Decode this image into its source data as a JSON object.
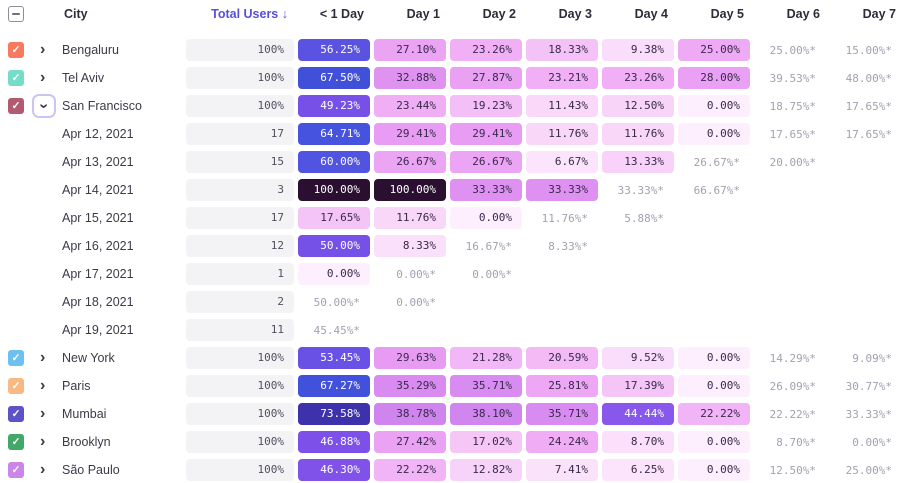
{
  "header": {
    "columns": [
      "City",
      "Total Users",
      "< 1 Day",
      "Day 1",
      "Day 2",
      "Day 3",
      "Day 4",
      "Day 5",
      "Day 6",
      "Day 7"
    ],
    "select_all_state": "indeterminate",
    "sorted_column": "Total Users",
    "sort_direction": "desc"
  },
  "icons": {
    "check": "✓",
    "chevron": "›",
    "minus": "−",
    "sort_desc": "↓"
  },
  "colors": {
    "header_text": "#302b3b",
    "sorted_header": "#5750d9",
    "label_text": "#3e3949",
    "incomplete_text": "#a49fb0",
    "total_pill_bg": "#f3f3f6",
    "total_pill_text": "#534e5e",
    "heat_text_dark": "#372a4a",
    "heat_text_light": "#ffffff",
    "focus_ring": "#cfc3f6",
    "checkbox_border": "#8d8d97"
  },
  "heat_text_threshold": 42,
  "heat_scale": [
    [
      0,
      "#feeffe"
    ],
    [
      6,
      "#fce6fc"
    ],
    [
      12,
      "#f9d6f9"
    ],
    [
      18,
      "#f5c3f7"
    ],
    [
      24,
      "#f0adf5"
    ],
    [
      30,
      "#e79af3"
    ],
    [
      35,
      "#da8cf0"
    ],
    [
      40,
      "#cc82ee"
    ],
    [
      43,
      "#8c5cec"
    ],
    [
      47,
      "#7d50e9"
    ],
    [
      52,
      "#6f51e6"
    ],
    [
      56,
      "#5b52e0"
    ],
    [
      61,
      "#4d55e0"
    ],
    [
      67,
      "#4152dc"
    ],
    [
      70,
      "#3c45cc"
    ],
    [
      74,
      "#3d2fa8"
    ],
    [
      85,
      "#331b63"
    ],
    [
      100,
      "#2a0f31"
    ]
  ],
  "rows": [
    {
      "type": "city",
      "label": "Bengaluru",
      "checkbox_color": "#f8795d",
      "expanded": false,
      "total": "100%",
      "cells": [
        {
          "s": "p",
          "v": 56.25,
          "d": "56.25%"
        },
        {
          "s": "p",
          "v": 27.1,
          "d": "27.10%"
        },
        {
          "s": "p",
          "v": 23.26,
          "d": "23.26%"
        },
        {
          "s": "p",
          "v": 18.33,
          "d": "18.33%"
        },
        {
          "s": "p",
          "v": 9.38,
          "d": "9.38%"
        },
        {
          "s": "p",
          "v": 25.0,
          "d": "25.00%"
        },
        {
          "s": "i",
          "d": "25.00%*"
        },
        {
          "s": "i",
          "d": "15.00%*"
        }
      ]
    },
    {
      "type": "city",
      "label": "Tel Aviv",
      "checkbox_color": "#74dcc7",
      "expanded": false,
      "total": "100%",
      "cells": [
        {
          "s": "p",
          "v": 67.5,
          "d": "67.50%"
        },
        {
          "s": "p",
          "v": 32.88,
          "d": "32.88%"
        },
        {
          "s": "p",
          "v": 27.87,
          "d": "27.87%"
        },
        {
          "s": "p",
          "v": 23.21,
          "d": "23.21%"
        },
        {
          "s": "p",
          "v": 23.26,
          "d": "23.26%"
        },
        {
          "s": "p",
          "v": 28.0,
          "d": "28.00%"
        },
        {
          "s": "i",
          "d": "39.53%*"
        },
        {
          "s": "i",
          "d": "48.00%*"
        }
      ]
    },
    {
      "type": "city",
      "label": "San Francisco",
      "checkbox_color": "#b25b70",
      "expanded": true,
      "total": "100%",
      "cells": [
        {
          "s": "p",
          "v": 49.23,
          "d": "49.23%"
        },
        {
          "s": "p",
          "v": 23.44,
          "d": "23.44%"
        },
        {
          "s": "p",
          "v": 19.23,
          "d": "19.23%"
        },
        {
          "s": "p",
          "v": 11.43,
          "d": "11.43%"
        },
        {
          "s": "p",
          "v": 12.5,
          "d": "12.50%"
        },
        {
          "s": "p",
          "v": 0.0,
          "d": "0.00%"
        },
        {
          "s": "i",
          "d": "18.75%*"
        },
        {
          "s": "i",
          "d": "17.65%*"
        }
      ]
    },
    {
      "type": "date",
      "label": "Apr 12, 2021",
      "total": "17",
      "cells": [
        {
          "s": "p",
          "v": 64.71,
          "d": "64.71%"
        },
        {
          "s": "p",
          "v": 29.41,
          "d": "29.41%"
        },
        {
          "s": "p",
          "v": 29.41,
          "d": "29.41%"
        },
        {
          "s": "p",
          "v": 11.76,
          "d": "11.76%"
        },
        {
          "s": "p",
          "v": 11.76,
          "d": "11.76%"
        },
        {
          "s": "p",
          "v": 0.0,
          "d": "0.00%"
        },
        {
          "s": "i",
          "d": "17.65%*"
        },
        {
          "s": "i",
          "d": "17.65%*"
        }
      ]
    },
    {
      "type": "date",
      "label": "Apr 13, 2021",
      "total": "15",
      "cells": [
        {
          "s": "p",
          "v": 60.0,
          "d": "60.00%"
        },
        {
          "s": "p",
          "v": 26.67,
          "d": "26.67%"
        },
        {
          "s": "p",
          "v": 26.67,
          "d": "26.67%"
        },
        {
          "s": "p",
          "v": 6.67,
          "d": "6.67%"
        },
        {
          "s": "p",
          "v": 13.33,
          "d": "13.33%"
        },
        {
          "s": "i",
          "d": "26.67%*"
        },
        {
          "s": "i",
          "d": "20.00%*"
        },
        {
          "s": "e"
        }
      ]
    },
    {
      "type": "date",
      "label": "Apr 14, 2021",
      "total": "3",
      "cells": [
        {
          "s": "p",
          "v": 100.0,
          "d": "100.00%"
        },
        {
          "s": "p",
          "v": 100.0,
          "d": "100.00%"
        },
        {
          "s": "p",
          "v": 33.33,
          "d": "33.33%"
        },
        {
          "s": "p",
          "v": 33.33,
          "d": "33.33%"
        },
        {
          "s": "i",
          "d": "33.33%*"
        },
        {
          "s": "i",
          "d": "66.67%*"
        },
        {
          "s": "e"
        },
        {
          "s": "e"
        }
      ]
    },
    {
      "type": "date",
      "label": "Apr 15, 2021",
      "total": "17",
      "cells": [
        {
          "s": "p",
          "v": 17.65,
          "d": "17.65%"
        },
        {
          "s": "p",
          "v": 11.76,
          "d": "11.76%"
        },
        {
          "s": "p",
          "v": 0.0,
          "d": "0.00%"
        },
        {
          "s": "i",
          "d": "11.76%*"
        },
        {
          "s": "i",
          "d": "5.88%*"
        },
        {
          "s": "e"
        },
        {
          "s": "e"
        },
        {
          "s": "e"
        }
      ]
    },
    {
      "type": "date",
      "label": "Apr 16, 2021",
      "total": "12",
      "cells": [
        {
          "s": "p",
          "v": 50.0,
          "d": "50.00%"
        },
        {
          "s": "p",
          "v": 8.33,
          "d": "8.33%"
        },
        {
          "s": "i",
          "d": "16.67%*"
        },
        {
          "s": "i",
          "d": "8.33%*"
        },
        {
          "s": "e"
        },
        {
          "s": "e"
        },
        {
          "s": "e"
        },
        {
          "s": "e"
        }
      ]
    },
    {
      "type": "date",
      "label": "Apr 17, 2021",
      "total": "1",
      "cells": [
        {
          "s": "p",
          "v": 0.0,
          "d": "0.00%"
        },
        {
          "s": "i",
          "d": "0.00%*"
        },
        {
          "s": "i",
          "d": "0.00%*"
        },
        {
          "s": "e"
        },
        {
          "s": "e"
        },
        {
          "s": "e"
        },
        {
          "s": "e"
        },
        {
          "s": "e"
        }
      ]
    },
    {
      "type": "date",
      "label": "Apr 18, 2021",
      "total": "2",
      "cells": [
        {
          "s": "i",
          "d": "50.00%*"
        },
        {
          "s": "i",
          "d": "0.00%*"
        },
        {
          "s": "e"
        },
        {
          "s": "e"
        },
        {
          "s": "e"
        },
        {
          "s": "e"
        },
        {
          "s": "e"
        },
        {
          "s": "e"
        }
      ]
    },
    {
      "type": "date",
      "label": "Apr 19, 2021",
      "total": "11",
      "cells": [
        {
          "s": "i",
          "d": "45.45%*"
        },
        {
          "s": "e"
        },
        {
          "s": "e"
        },
        {
          "s": "e"
        },
        {
          "s": "e"
        },
        {
          "s": "e"
        },
        {
          "s": "e"
        },
        {
          "s": "e"
        }
      ]
    },
    {
      "type": "city",
      "label": "New York",
      "checkbox_color": "#6fc0f2",
      "expanded": false,
      "total": "100%",
      "cells": [
        {
          "s": "p",
          "v": 53.45,
          "d": "53.45%"
        },
        {
          "s": "p",
          "v": 29.63,
          "d": "29.63%"
        },
        {
          "s": "p",
          "v": 21.28,
          "d": "21.28%"
        },
        {
          "s": "p",
          "v": 20.59,
          "d": "20.59%"
        },
        {
          "s": "p",
          "v": 9.52,
          "d": "9.52%"
        },
        {
          "s": "p",
          "v": 0.0,
          "d": "0.00%"
        },
        {
          "s": "i",
          "d": "14.29%*"
        },
        {
          "s": "i",
          "d": "9.09%*"
        }
      ]
    },
    {
      "type": "city",
      "label": "Paris",
      "checkbox_color": "#f8ba82",
      "expanded": false,
      "total": "100%",
      "cells": [
        {
          "s": "p",
          "v": 67.27,
          "d": "67.27%"
        },
        {
          "s": "p",
          "v": 35.29,
          "d": "35.29%"
        },
        {
          "s": "p",
          "v": 35.71,
          "d": "35.71%"
        },
        {
          "s": "p",
          "v": 25.81,
          "d": "25.81%"
        },
        {
          "s": "p",
          "v": 17.39,
          "d": "17.39%"
        },
        {
          "s": "p",
          "v": 0.0,
          "d": "0.00%"
        },
        {
          "s": "i",
          "d": "26.09%*"
        },
        {
          "s": "i",
          "d": "30.77%*"
        }
      ]
    },
    {
      "type": "city",
      "label": "Mumbai",
      "checkbox_color": "#5e52c9",
      "expanded": false,
      "total": "100%",
      "cells": [
        {
          "s": "p",
          "v": 73.58,
          "d": "73.58%"
        },
        {
          "s": "p",
          "v": 38.78,
          "d": "38.78%"
        },
        {
          "s": "p",
          "v": 38.1,
          "d": "38.10%"
        },
        {
          "s": "p",
          "v": 35.71,
          "d": "35.71%"
        },
        {
          "s": "p",
          "v": 44.44,
          "d": "44.44%"
        },
        {
          "s": "p",
          "v": 22.22,
          "d": "22.22%"
        },
        {
          "s": "i",
          "d": "22.22%*"
        },
        {
          "s": "i",
          "d": "33.33%*"
        }
      ]
    },
    {
      "type": "city",
      "label": "Brooklyn",
      "checkbox_color": "#42a869",
      "expanded": false,
      "total": "100%",
      "cells": [
        {
          "s": "p",
          "v": 46.88,
          "d": "46.88%"
        },
        {
          "s": "p",
          "v": 27.42,
          "d": "27.42%"
        },
        {
          "s": "p",
          "v": 17.02,
          "d": "17.02%"
        },
        {
          "s": "p",
          "v": 24.24,
          "d": "24.24%"
        },
        {
          "s": "p",
          "v": 8.7,
          "d": "8.70%"
        },
        {
          "s": "p",
          "v": 0.0,
          "d": "0.00%"
        },
        {
          "s": "i",
          "d": "8.70%*"
        },
        {
          "s": "i",
          "d": "0.00%*"
        }
      ]
    },
    {
      "type": "city",
      "label": "São Paulo",
      "checkbox_color": "#ca86e8",
      "expanded": false,
      "total": "100%",
      "cells": [
        {
          "s": "p",
          "v": 46.3,
          "d": "46.30%"
        },
        {
          "s": "p",
          "v": 22.22,
          "d": "22.22%"
        },
        {
          "s": "p",
          "v": 12.82,
          "d": "12.82%"
        },
        {
          "s": "p",
          "v": 7.41,
          "d": "7.41%"
        },
        {
          "s": "p",
          "v": 6.25,
          "d": "6.25%"
        },
        {
          "s": "p",
          "v": 0.0,
          "d": "0.00%"
        },
        {
          "s": "i",
          "d": "12.50%*"
        },
        {
          "s": "i",
          "d": "25.00%*"
        }
      ]
    }
  ]
}
